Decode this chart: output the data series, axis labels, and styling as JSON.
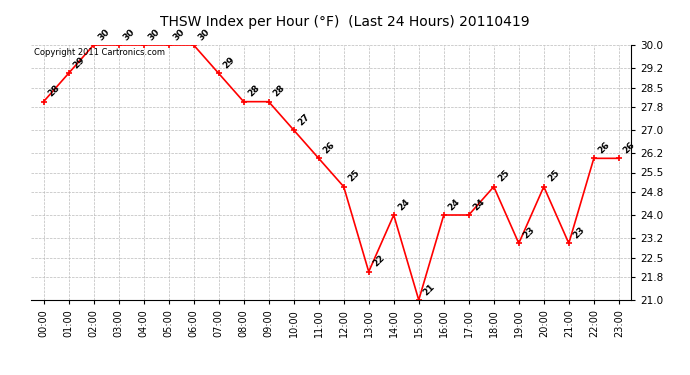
{
  "title": "THSW Index per Hour (°F)  (Last 24 Hours) 20110419",
  "hours": [
    "00:00",
    "01:00",
    "02:00",
    "03:00",
    "04:00",
    "05:00",
    "06:00",
    "07:00",
    "08:00",
    "09:00",
    "10:00",
    "11:00",
    "12:00",
    "13:00",
    "14:00",
    "15:00",
    "16:00",
    "17:00",
    "18:00",
    "19:00",
    "20:00",
    "21:00",
    "22:00",
    "23:00"
  ],
  "values": [
    28,
    29,
    30,
    30,
    30,
    30,
    30,
    29,
    28,
    28,
    27,
    26,
    25,
    22,
    24,
    21,
    24,
    24,
    25,
    23,
    25,
    23,
    26,
    26
  ],
  "ylim_min": 21.0,
  "ylim_max": 30.0,
  "yticks": [
    21.0,
    21.8,
    22.5,
    23.2,
    24.0,
    24.8,
    25.5,
    26.2,
    27.0,
    27.8,
    28.5,
    29.2,
    30.0
  ],
  "line_color": "red",
  "marker_color": "red",
  "bg_color": "white",
  "grid_color": "#bbbbbb",
  "copyright_text": "Copyright 2011 Cartronics.com",
  "label_fontsize": 6.5,
  "title_fontsize": 10,
  "xtick_fontsize": 7,
  "ytick_fontsize": 7.5
}
